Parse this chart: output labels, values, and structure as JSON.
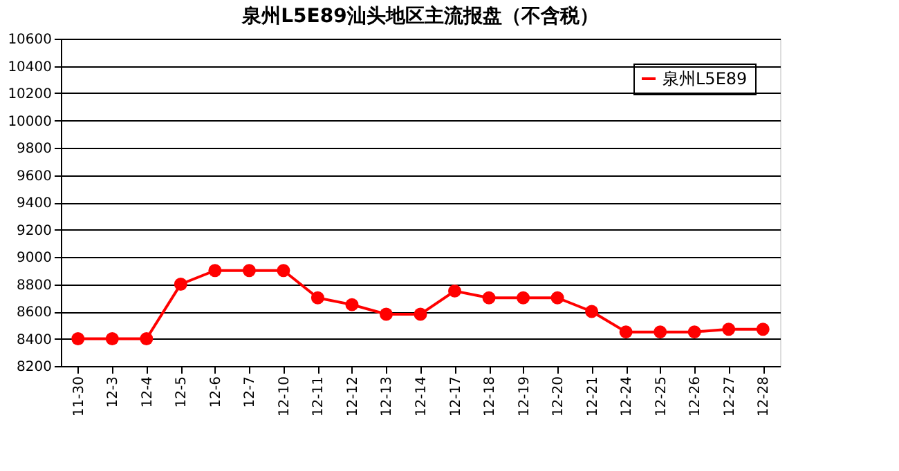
{
  "chart_data": {
    "type": "line",
    "title": "泉州L5E89汕头地区主流报盘（不含税）",
    "categories": [
      "11-30",
      "12-3",
      "12-4",
      "12-5",
      "12-6",
      "12-7",
      "12-10",
      "12-11",
      "12-12",
      "12-13",
      "12-14",
      "12-17",
      "12-18",
      "12-19",
      "12-20",
      "12-21",
      "12-24",
      "12-25",
      "12-26",
      "12-27",
      "12-28"
    ],
    "series": [
      {
        "name": "泉州L5E89",
        "color": "#ff0000",
        "values": [
          8400,
          8400,
          8400,
          8800,
          8900,
          8900,
          8900,
          8700,
          8650,
          8580,
          8580,
          8750,
          8700,
          8700,
          8700,
          8600,
          8450,
          8450,
          8450,
          8470,
          8470
        ]
      }
    ],
    "ylim": [
      8200,
      10600
    ],
    "yticks": [
      8200,
      8400,
      8600,
      8800,
      9000,
      9200,
      9400,
      9600,
      9800,
      10000,
      10200,
      10400,
      10600
    ],
    "grid": "y",
    "legend": "top right",
    "marker": "circle",
    "line_style": "solid"
  }
}
